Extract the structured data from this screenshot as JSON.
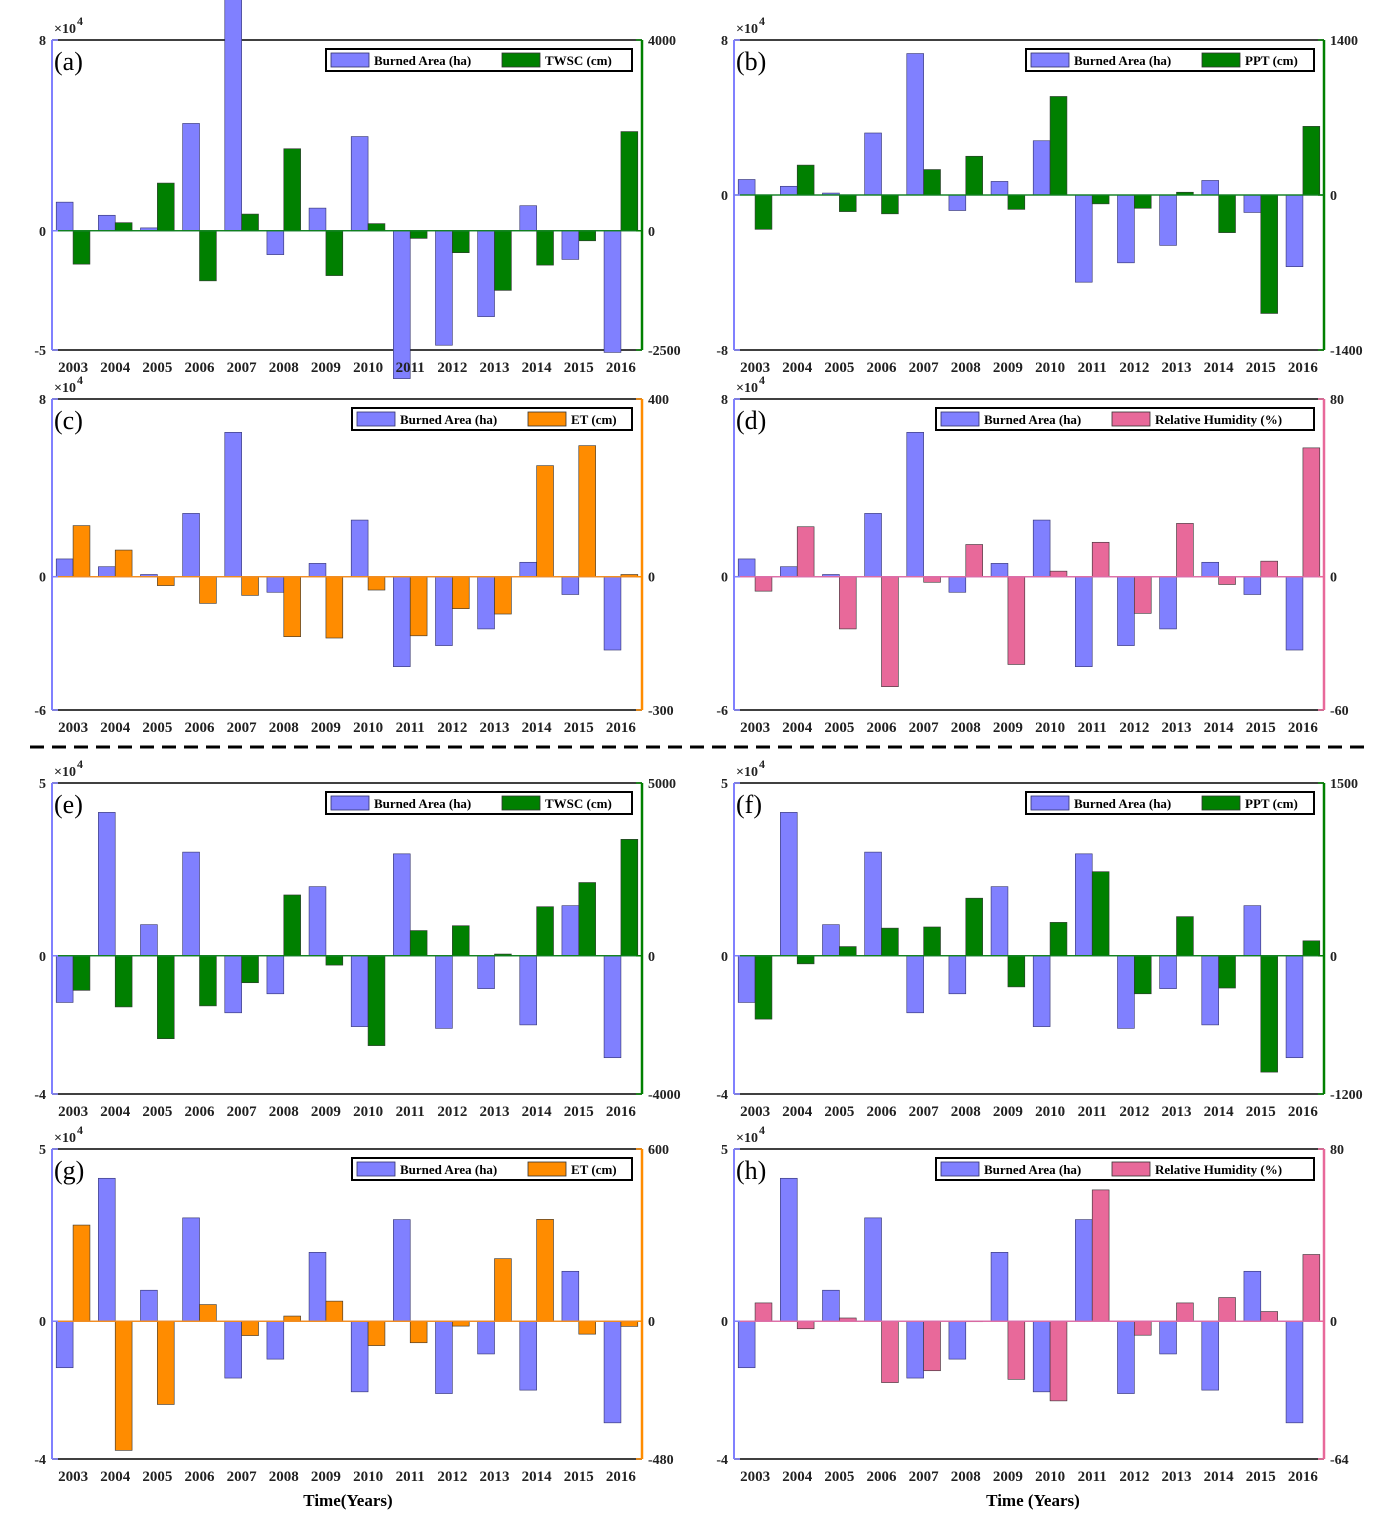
{
  "figure": {
    "xlabels": [
      "Time(Years)",
      "Time (Years)"
    ],
    "colors": {
      "burned": "#8080ff",
      "burned_edge": "#30306a",
      "twsc": "#008000",
      "ppt": "#008000",
      "et": "#ff8c00",
      "rh": "#e8699a",
      "divider": "#000000"
    }
  },
  "chart_data": [
    {
      "type": "bar",
      "label": "(a)",
      "categories": [
        "2003",
        "2004",
        "2005",
        "2006",
        "2007",
        "2008",
        "2009",
        "2010",
        "2011",
        "2012",
        "2013",
        "2014",
        "2015",
        "2016"
      ],
      "series": [
        {
          "name": "Burned Area (ha)",
          "axis": "left",
          "color": "burned",
          "values": [
            12000,
            6500,
            1200,
            45000,
            104000,
            -10000,
            9500,
            39500,
            -62000,
            -48000,
            -36000,
            10500,
            -12000,
            -51000
          ]
        },
        {
          "name": "TWSC (cm)",
          "axis": "right",
          "color": "twsc",
          "values": [
            -700,
            170,
            1000,
            -1050,
            350,
            1720,
            -940,
            150,
            -160,
            -460,
            -1250,
            -720,
            -210,
            2080
          ]
        }
      ],
      "left": {
        "ylim": [
          -5,
          8
        ],
        "ticks": [
          "8",
          "0",
          "-5"
        ],
        "tick_values": [
          8,
          0,
          -5
        ],
        "scale": 10000,
        "multiplier": "×10",
        "exponent": "4",
        "color": "#8080ff"
      },
      "right": {
        "ylim": [
          -2500,
          4000
        ],
        "ticks": [
          "4000",
          "0",
          "-2500"
        ],
        "tick_values": [
          4000,
          0,
          -2500
        ],
        "color": "#008000"
      }
    },
    {
      "type": "bar",
      "label": "(b)",
      "categories": [
        "2003",
        "2004",
        "2005",
        "2006",
        "2007",
        "2008",
        "2009",
        "2010",
        "2011",
        "2012",
        "2013",
        "2014",
        "2015",
        "2016"
      ],
      "series": [
        {
          "name": "Burned Area (ha)",
          "axis": "left",
          "color": "burned",
          "values": [
            8000,
            4500,
            1000,
            32000,
            73000,
            -8000,
            7000,
            28000,
            -45000,
            -35000,
            -26000,
            7500,
            -9000,
            -37000
          ]
        },
        {
          "name": "PPT (cm)",
          "axis": "right",
          "color": "ppt",
          "values": [
            -310,
            270,
            -150,
            -170,
            230,
            350,
            -130,
            890,
            -80,
            -120,
            25,
            -340,
            -1070,
            620
          ]
        }
      ],
      "left": {
        "ylim": [
          -8,
          8
        ],
        "ticks": [
          "8",
          "0",
          "-8"
        ],
        "tick_values": [
          8,
          0,
          -8
        ],
        "scale": 10000,
        "multiplier": "×10",
        "exponent": "4",
        "color": "#8080ff"
      },
      "right": {
        "ylim": [
          -1400,
          1400
        ],
        "ticks": [
          "1400",
          "0",
          "-1400"
        ],
        "tick_values": [
          1400,
          0,
          -1400
        ],
        "color": "#008000"
      }
    },
    {
      "type": "bar",
      "label": "(c)",
      "categories": [
        "2003",
        "2004",
        "2005",
        "2006",
        "2007",
        "2008",
        "2009",
        "2010",
        "2011",
        "2012",
        "2013",
        "2014",
        "2015",
        "2016"
      ],
      "series": [
        {
          "name": "Burned Area (ha)",
          "axis": "left",
          "color": "burned",
          "values": [
            8000,
            4500,
            1000,
            28500,
            65000,
            -7000,
            6000,
            25500,
            -40500,
            -31000,
            -23500,
            6500,
            -8000,
            -33000
          ]
        },
        {
          "name": "ET (cm)",
          "axis": "right",
          "color": "et",
          "values": [
            115,
            60,
            -20,
            -60,
            -42,
            -135,
            -138,
            -30,
            -133,
            -72,
            -84,
            250,
            295,
            5
          ]
        }
      ],
      "left": {
        "ylim": [
          -6,
          8
        ],
        "ticks": [
          "8",
          "0",
          "-6"
        ],
        "tick_values": [
          8,
          0,
          -6
        ],
        "scale": 10000,
        "multiplier": "×10",
        "exponent": "4",
        "color": "#8080ff"
      },
      "right": {
        "ylim": [
          -300,
          400
        ],
        "ticks": [
          "400",
          "0",
          "-300"
        ],
        "tick_values": [
          400,
          0,
          -300
        ],
        "color": "#ff8c00"
      }
    },
    {
      "type": "bar",
      "label": "(d)",
      "categories": [
        "2003",
        "2004",
        "2005",
        "2006",
        "2007",
        "2008",
        "2009",
        "2010",
        "2011",
        "2012",
        "2013",
        "2014",
        "2015",
        "2016"
      ],
      "series": [
        {
          "name": "Burned Area (ha)",
          "axis": "left",
          "color": "burned",
          "values": [
            8000,
            4500,
            1000,
            28500,
            65000,
            -7000,
            6000,
            25500,
            -40500,
            -31000,
            -23500,
            6500,
            -8000,
            -33000
          ]
        },
        {
          "name": "Relative Humidity (%)",
          "axis": "right",
          "color": "rh",
          "values": [
            -6.5,
            22.5,
            -23.5,
            -49.5,
            -2.5,
            14.5,
            -39.5,
            2.5,
            15.5,
            -16.5,
            24,
            -3.5,
            7,
            58
          ]
        }
      ],
      "left": {
        "ylim": [
          -6,
          8
        ],
        "ticks": [
          "8",
          "0",
          "-6"
        ],
        "tick_values": [
          8,
          0,
          -6
        ],
        "scale": 10000,
        "multiplier": "×10",
        "exponent": "4",
        "color": "#8080ff"
      },
      "right": {
        "ylim": [
          -60,
          80
        ],
        "ticks": [
          "80",
          "0",
          "-60"
        ],
        "tick_values": [
          80,
          0,
          -60
        ],
        "color": "#e8699a"
      }
    },
    {
      "type": "bar",
      "label": "(e)",
      "categories": [
        "2003",
        "2004",
        "2005",
        "2006",
        "2007",
        "2008",
        "2009",
        "2010",
        "2011",
        "2012",
        "2013",
        "2014",
        "2015",
        "2016"
      ],
      "series": [
        {
          "name": "Burned Area (ha)",
          "axis": "left",
          "color": "burned",
          "values": [
            -13500,
            41500,
            9000,
            30000,
            -16500,
            -11000,
            20000,
            -20500,
            29500,
            -21000,
            -9500,
            -20000,
            14500,
            -29500
          ]
        },
        {
          "name": "TWSC (cm)",
          "axis": "right",
          "color": "twsc",
          "values": [
            -1000,
            -1480,
            -2400,
            -1450,
            -780,
            1760,
            -270,
            -2600,
            730,
            870,
            50,
            1420,
            2120,
            3370
          ]
        }
      ],
      "left": {
        "ylim": [
          -4,
          5
        ],
        "ticks": [
          "5",
          "0",
          "-4"
        ],
        "tick_values": [
          5,
          0,
          -4
        ],
        "scale": 10000,
        "multiplier": "×10",
        "exponent": "4",
        "color": "#8080ff"
      },
      "right": {
        "ylim": [
          -4000,
          5000
        ],
        "ticks": [
          "5000",
          "0",
          "-4000"
        ],
        "tick_values": [
          5000,
          0,
          -4000
        ],
        "color": "#008000"
      }
    },
    {
      "type": "bar",
      "label": "(f)",
      "categories": [
        "2003",
        "2004",
        "2005",
        "2006",
        "2007",
        "2008",
        "2009",
        "2010",
        "2011",
        "2012",
        "2013",
        "2014",
        "2015",
        "2016"
      ],
      "series": [
        {
          "name": "Burned Area (ha)",
          "axis": "left",
          "color": "burned",
          "values": [
            -13500,
            41500,
            9000,
            30000,
            -16500,
            -11000,
            20000,
            -20500,
            29500,
            -21000,
            -9500,
            -20000,
            14500,
            -29500
          ]
        },
        {
          "name": "PPT (cm)",
          "axis": "right",
          "color": "ppt",
          "values": [
            -550,
            -70,
            80,
            240,
            250,
            500,
            -270,
            290,
            730,
            -330,
            340,
            -280,
            -1010,
            130
          ]
        }
      ],
      "left": {
        "ylim": [
          -4,
          5
        ],
        "ticks": [
          "5",
          "0",
          "-4"
        ],
        "tick_values": [
          5,
          0,
          -4
        ],
        "scale": 10000,
        "multiplier": "×10",
        "exponent": "4",
        "color": "#8080ff"
      },
      "right": {
        "ylim": [
          -1200,
          1500
        ],
        "ticks": [
          "1500",
          "0",
          "-1200"
        ],
        "tick_values": [
          1500,
          0,
          -1200
        ],
        "color": "#008000"
      }
    },
    {
      "type": "bar",
      "label": "(g)",
      "categories": [
        "2003",
        "2004",
        "2005",
        "2006",
        "2007",
        "2008",
        "2009",
        "2010",
        "2011",
        "2012",
        "2013",
        "2014",
        "2015",
        "2016"
      ],
      "series": [
        {
          "name": "Burned Area (ha)",
          "axis": "left",
          "color": "burned",
          "values": [
            -13500,
            41500,
            9000,
            30000,
            -16500,
            -11000,
            20000,
            -20500,
            29500,
            -21000,
            -9500,
            -20000,
            14500,
            -29500
          ]
        },
        {
          "name": "ET (cm)",
          "axis": "right",
          "color": "et",
          "values": [
            335,
            -450,
            -290,
            58,
            -50,
            18,
            70,
            -85,
            -75,
            -17,
            218,
            355,
            -45,
            -18
          ]
        }
      ],
      "left": {
        "ylim": [
          -4,
          5
        ],
        "ticks": [
          "5",
          "0",
          "-4"
        ],
        "tick_values": [
          5,
          0,
          -4
        ],
        "scale": 10000,
        "multiplier": "×10",
        "exponent": "4",
        "color": "#8080ff"
      },
      "right": {
        "ylim": [
          -480,
          600
        ],
        "ticks": [
          "600",
          "0",
          "-480"
        ],
        "tick_values": [
          600,
          0,
          -480
        ],
        "color": "#ff8c00"
      }
    },
    {
      "type": "bar",
      "label": "(h)",
      "categories": [
        "2003",
        "2004",
        "2005",
        "2006",
        "2007",
        "2008",
        "2009",
        "2010",
        "2011",
        "2012",
        "2013",
        "2014",
        "2015",
        "2016"
      ],
      "series": [
        {
          "name": "Burned Area (ha)",
          "axis": "left",
          "color": "burned",
          "values": [
            -13500,
            41500,
            9000,
            30000,
            -16500,
            -11000,
            20000,
            -20500,
            29500,
            -21000,
            -9500,
            -20000,
            14500,
            -29500
          ]
        },
        {
          "name": "Relative Humidity (%)",
          "axis": "right",
          "color": "rh",
          "values": [
            8.5,
            -3.5,
            1.5,
            -28.5,
            -23,
            0,
            -27,
            -37,
            61,
            -6.5,
            8.5,
            11,
            4.5,
            31
          ]
        }
      ],
      "left": {
        "ylim": [
          -4,
          5
        ],
        "ticks": [
          "5",
          "0",
          "-4"
        ],
        "tick_values": [
          5,
          0,
          -4
        ],
        "scale": 10000,
        "multiplier": "×10",
        "exponent": "4",
        "color": "#8080ff"
      },
      "right": {
        "ylim": [
          -64,
          80
        ],
        "ticks": [
          "80",
          "0",
          "-64"
        ],
        "tick_values": [
          80,
          0,
          -64
        ],
        "color": "#e8699a"
      }
    }
  ]
}
